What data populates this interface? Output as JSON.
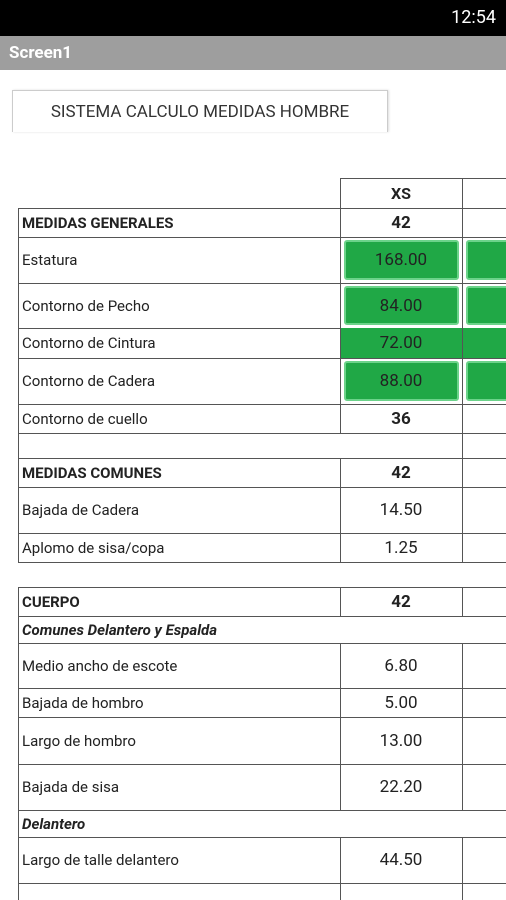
{
  "status_bar": {
    "time": "12:54"
  },
  "app_bar": {
    "title": "Screen1"
  },
  "tab": {
    "label": "SISTEMA CALCULO MEDIDAS HOMBRE"
  },
  "table": {
    "size_label": "XS",
    "groups": [
      [
        {
          "label": "MEDIDAS GENERALES",
          "value": "42",
          "style": "section"
        },
        {
          "label": "Estatura",
          "value": "168.00",
          "style": "button"
        },
        {
          "label": "Contorno de Pecho",
          "value": "84.00",
          "style": "button"
        },
        {
          "label": "Contorno de Cintura",
          "value": "72.00",
          "style": "green"
        },
        {
          "label": "Contorno de Cadera",
          "value": "88.00",
          "style": "button"
        },
        {
          "label": "Contorno de cuello",
          "value": "36",
          "style": "bold"
        }
      ],
      [
        {
          "label": "MEDIDAS COMUNES",
          "value": "42",
          "style": "section"
        },
        {
          "label": "Bajada de Cadera",
          "value": "14.50",
          "style": "plain"
        },
        {
          "label": "Aplomo de sisa/copa",
          "value": "1.25",
          "style": "plain"
        }
      ],
      [
        {
          "label": "CUERPO",
          "value": "42",
          "style": "section"
        },
        {
          "label": "Comunes Delantero y Espalda",
          "style": "sub"
        },
        {
          "label": "Medio ancho de escote",
          "value": "6.80",
          "style": "plain"
        },
        {
          "label": "Bajada de hombro",
          "value": "5.00",
          "style": "plain"
        },
        {
          "label": "Largo de hombro",
          "value": "13.00",
          "style": "plain"
        },
        {
          "label": "Bajada de sisa",
          "value": "22.20",
          "style": "plain"
        },
        {
          "label": "Delantero",
          "style": "sub"
        },
        {
          "label": "Largo de talle delantero",
          "value": "44.50",
          "style": "plain"
        }
      ]
    ]
  }
}
